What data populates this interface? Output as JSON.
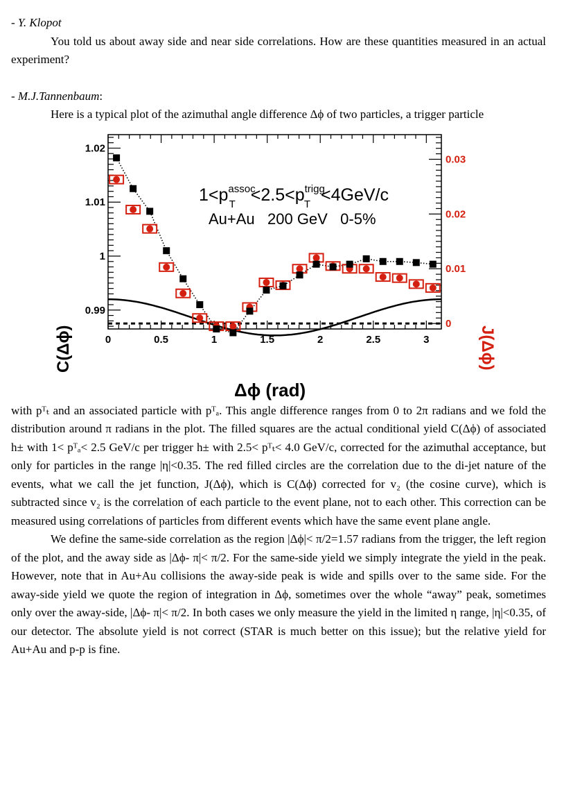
{
  "speaker1": {
    "dash": "- ",
    "name": "Y. Klopot"
  },
  "question": "You told us about away side and near side correlations. How are these quantities  measured in an actual experiment?",
  "speaker2": {
    "dash": "- ",
    "name": "M.J.Tannenbaum",
    "colon": ":"
  },
  "intro": "Here is a typical plot of the azimuthal angle difference Δϕ of  two particles, a trigger particle",
  "paragraph1": "with pᵀₜ and an associated particle with pᵀₐ. This angle difference ranges from 0 to 2π radians and we fold the distribution around π radians in the plot. The filled squares are the actual conditional yield C(Δϕ) of associated h± with 1< pᵀₐ< 2.5 GeV/c per trigger h± with 2.5< pᵀₜ< 4.0 GeV/c, corrected for the azimuthal acceptance, but only for particles in the range |η|<0.35. The red filled circles are the correlation due to the di-jet nature of the events, what we call the jet function, J(Δϕ), which is C(Δϕ) corrected for v₂ (the cosine curve), which is subtracted since v₂ is the correlation of each particle to the event plane, not to each other.  This correction can be measured using correlations of particles from different events which have the same event plane angle.",
  "paragraph2": "We define the same-side correlation as the region |Δϕ|< π/2=1.57 radians from the trigger, the left region of the plot, and the away side as |Δϕ- π|< π/2. For the same-side yield we simply integrate the yield in the peak. However, note that in Au+Au collisions the away-side peak is wide and spills  over to the same side. For the away-side yield we quote the region of integration in Δϕ, sometimes over the whole “away” peak, sometimes only over the away-side, |Δϕ- π|< π/2. In both cases we only measure the yield in the limited η range, |η|<0.35, of our detector. The absolute yield is not correct (STAR is much better on this issue); but the relative yield for Au+Au and p-p is fine.",
  "chart_data": {
    "type": "scatter",
    "annotation_line1": {
      "base": "1<p",
      "sub1": "T",
      "sup1": "assoc",
      "mid": "<2.5<p",
      "sub2": "T",
      "sup2": "trigg",
      "end": "<4GeV/c"
    },
    "annotation_line2": "Au+Au   200 GeV   0-5%",
    "xlabel": "Δϕ  (rad)",
    "ylabel_left": "C(Δϕ)",
    "ylabel_right": "J(Δϕ)",
    "xlim": [
      0,
      3.14159
    ],
    "ylim_left": [
      0.9865,
      1.0225
    ],
    "ylim_right": [
      -0.001,
      0.0345
    ],
    "x_ticks": [
      0,
      0.5,
      1,
      1.5,
      2,
      2.5,
      3
    ],
    "x_tick_labels": [
      "0",
      "0.5",
      "1",
      "1.5",
      "2",
      "2.5",
      "3"
    ],
    "left_ticks": [
      0.99,
      1.0,
      1.01,
      1.02
    ],
    "left_tick_labels": [
      "0.99",
      "1",
      "1.01",
      "1.02"
    ],
    "right_ticks": [
      0,
      0.01,
      0.02,
      0.03
    ],
    "right_tick_labels": [
      "0",
      "0.01",
      "0.02",
      "0.03"
    ],
    "colors": {
      "C": "#000000",
      "J": "#d42010",
      "v2": "#000000"
    },
    "series": [
      {
        "key": "C",
        "marker": "filled-square",
        "axis": "left",
        "x": [
          0.079,
          0.236,
          0.393,
          0.55,
          0.707,
          0.864,
          1.021,
          1.178,
          1.335,
          1.492,
          1.649,
          1.806,
          1.963,
          2.12,
          2.277,
          2.434,
          2.591,
          2.748,
          2.905,
          3.062
        ],
        "y": [
          1.0182,
          1.0125,
          1.0083,
          1.001,
          0.9958,
          0.991,
          0.9865,
          0.9858,
          0.9898,
          0.9937,
          0.9945,
          0.9965,
          0.9985,
          0.998,
          0.9985,
          0.9995,
          0.999,
          0.999,
          0.9988,
          0.9985
        ]
      },
      {
        "key": "J",
        "marker": "filled-circle-with-box",
        "axis": "right",
        "x": [
          0.079,
          0.236,
          0.393,
          0.55,
          0.707,
          0.864,
          1.021,
          1.178,
          1.335,
          1.492,
          1.649,
          1.806,
          1.963,
          2.12,
          2.277,
          2.434,
          2.591,
          2.748,
          2.905,
          3.062
        ],
        "y": [
          0.0263,
          0.0208,
          0.0173,
          0.0103,
          0.0055,
          0.001,
          -0.0005,
          -0.0005,
          0.003,
          0.0075,
          0.007,
          0.01,
          0.012,
          0.0105,
          0.01,
          0.01,
          0.0085,
          0.0083,
          0.0072,
          0.0065
        ]
      }
    ],
    "curves": [
      {
        "key": "v2",
        "style": "solid",
        "axis": "left",
        "form": "cosine",
        "ymin": 0.9853,
        "ymax": 0.992
      },
      {
        "key": "jet_fit",
        "style": "dotted",
        "axis": "left"
      },
      {
        "key": "zero_J",
        "style": "dashed",
        "axis": "right",
        "y": 0
      }
    ]
  }
}
